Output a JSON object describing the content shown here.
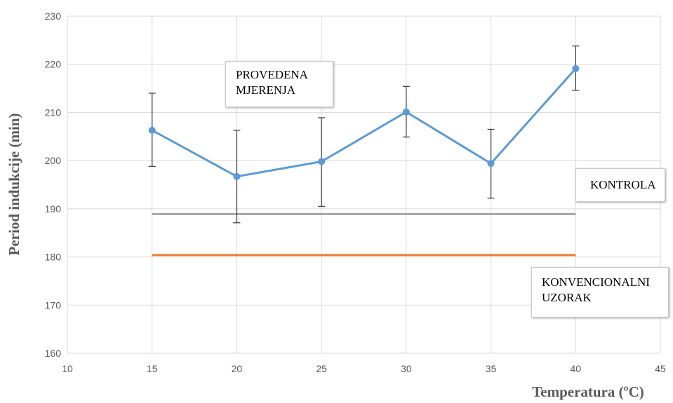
{
  "chart_data": {
    "type": "line",
    "xlabel": "Temperatura (ºC)",
    "ylabel": "Period indukcije (min)",
    "xlim": [
      10,
      45
    ],
    "ylim": [
      160,
      230
    ],
    "x_ticks": [
      10,
      15,
      20,
      25,
      30,
      35,
      40,
      45
    ],
    "y_ticks": [
      160,
      170,
      180,
      190,
      200,
      210,
      220,
      230
    ],
    "grid": true,
    "series": [
      {
        "name": "PROVEDENA MJERENJA",
        "color": "#5b9bd5",
        "x": [
          15,
          20,
          25,
          30,
          35,
          40
        ],
        "y": [
          206.3,
          196.7,
          199.8,
          210.1,
          199.4,
          219.1
        ],
        "err_low": [
          198.8,
          187.1,
          190.5,
          204.9,
          192.2,
          214.6
        ],
        "err_high": [
          214.0,
          206.3,
          208.9,
          215.4,
          206.5,
          223.8
        ]
      },
      {
        "name": "KONTROLA",
        "color": "#a5a5a5",
        "x": [
          15,
          40
        ],
        "y": [
          188.9,
          188.9
        ]
      },
      {
        "name": "KONVENCIONALNI UZORAK",
        "color": "#ed7d31",
        "x": [
          15,
          40
        ],
        "y": [
          180.4,
          180.4
        ]
      }
    ],
    "labels": {
      "measured_line1": "PROVEDENA",
      "measured_line2": "MJERENJA",
      "control": "KONTROLA",
      "conventional_line1": "KONVENCIONALNI",
      "conventional_line2": "UZORAK"
    }
  }
}
